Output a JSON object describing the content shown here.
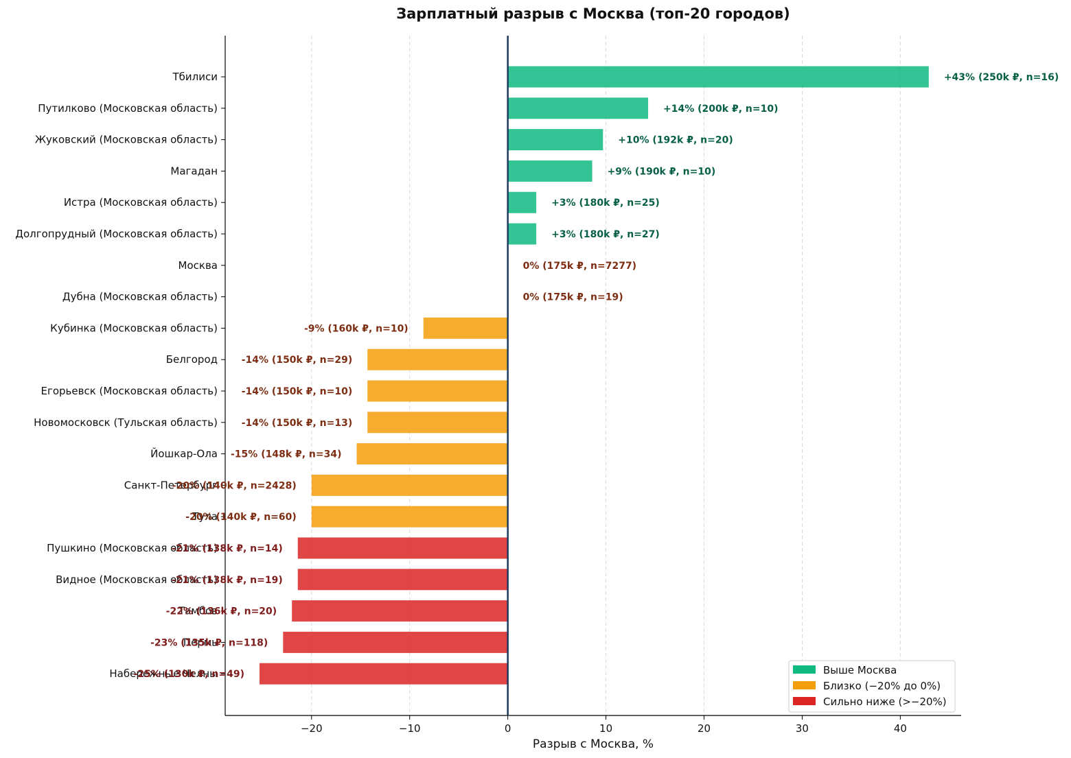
{
  "chart_data": {
    "type": "bar",
    "orientation": "horizontal",
    "title": "Зарплатный разрыв с Москва (топ-20 городов)",
    "xlabel": "Разрыв с Москва, %",
    "ylabel": "",
    "xlim": [
      -28.8,
      46.2
    ],
    "xticks": [
      -20,
      -10,
      0,
      10,
      20,
      30,
      40
    ],
    "xtick_labels": [
      "−20",
      "−10",
      "0",
      "10",
      "20",
      "30",
      "40"
    ],
    "grid": "vertical-dashed",
    "legend_position": "bottom-right",
    "colors": {
      "above": "#10b981",
      "near": "#f59e0b",
      "far": "#dc2626",
      "zero_line": "#1e3a5f"
    },
    "label_colors": {
      "above": "#065f46",
      "near": "#7c2d12",
      "far": "#7f1d1d"
    },
    "legend": [
      {
        "key": "above",
        "label": "Выше Москва"
      },
      {
        "key": "near",
        "label": "Близко (−20% до 0%)"
      },
      {
        "key": "far",
        "label": "Сильно ниже (>−20%)"
      }
    ],
    "categories": [
      "Тбилиси",
      "Путилково (Московская область)",
      "Жуковский  (Московская область)",
      "Магадан",
      "Истра (Московская область)",
      "Долгопрудный (Московская область)",
      "Москва",
      "Дубна (Московская область)",
      "Кубинка (Московская область)",
      "Белгород",
      "Егорьевск (Московская область)",
      "Новомосковск (Тульская область)",
      "Йошкар-Ола",
      "Санкт-Петербург",
      "Тула",
      "Пушкино (Московская область)",
      "Видное (Московская область)",
      "Тамбов",
      "Пермь",
      "Набережные Челны"
    ],
    "values": [
      42.9,
      14.3,
      9.7,
      8.6,
      2.9,
      2.9,
      0,
      0,
      -8.6,
      -14.3,
      -14.3,
      -14.3,
      -15.4,
      -20,
      -20,
      -21.4,
      -21.4,
      -22.0,
      -22.9,
      -25.3
    ],
    "groups": [
      "above",
      "above",
      "above",
      "above",
      "above",
      "above",
      "near",
      "near",
      "near",
      "near",
      "near",
      "near",
      "near",
      "near",
      "near",
      "far",
      "far",
      "far",
      "far",
      "far"
    ],
    "data_labels": [
      "+43% (250k ₽, n=16)",
      "+14% (200k ₽, n=10)",
      "+10% (192k ₽, n=20)",
      "+9% (190k ₽, n=10)",
      "+3% (180k ₽, n=25)",
      "+3% (180k ₽, n=27)",
      "0% (175k ₽, n=7277)",
      "0% (175k ₽, n=19)",
      "-9% (160k ₽, n=10)",
      "-14% (150k ₽, n=29)",
      "-14% (150k ₽, n=10)",
      "-14% (150k ₽, n=13)",
      "-15% (148k ₽, n=34)",
      "-20% (140k ₽, n=2428)",
      "-20% (140k ₽, n=60)",
      "-21% (138k ₽, n=14)",
      "-21% (138k ₽, n=19)",
      "-22% (136k ₽, n=20)",
      "-23% (135k ₽, n=118)",
      "-25% (130k ₽, n=49)"
    ]
  }
}
